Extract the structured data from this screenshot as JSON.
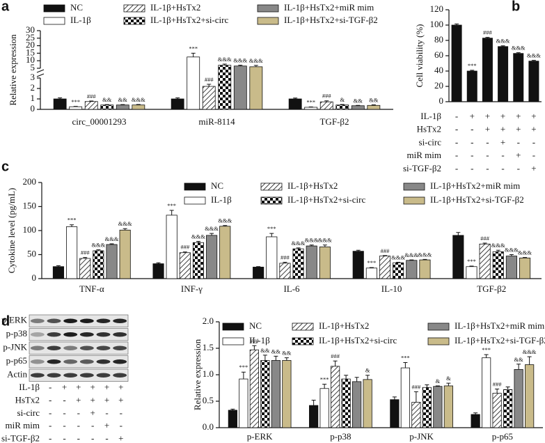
{
  "chart_data": [
    {
      "type": "bar",
      "panel_label": "a",
      "y_label": "Relative expression",
      "broken_axis": true,
      "categories": [
        "circ_00001293",
        "miR-8114",
        "TGF-β2"
      ],
      "ylim": [
        0,
        30
      ],
      "yticks": [
        0,
        1,
        2,
        3,
        5,
        10,
        15,
        20,
        25,
        30
      ],
      "series": [
        {
          "name": "NC",
          "color": "#111111",
          "values": [
            1.0,
            1.0,
            1.0
          ],
          "errors": [
            0.1,
            0.1,
            0.08
          ],
          "annotations": [
            null,
            null,
            null
          ]
        },
        {
          "name": "IL-1β",
          "color": "#ffffff",
          "values": [
            0.25,
            12.5,
            0.2
          ],
          "errors": [
            0.03,
            2.5,
            0.03
          ],
          "annotations": [
            "***",
            "***",
            "***"
          ]
        },
        {
          "name": "IL-1β+HsTx2",
          "color": "#ffffff",
          "pattern": "hatch",
          "values": [
            0.75,
            2.2,
            0.72
          ],
          "errors": [
            0.05,
            0.2,
            0.1
          ],
          "annotations": [
            "###",
            "###",
            "###"
          ]
        },
        {
          "name": "IL-1β+HsTx2+si-circ",
          "color": "#ffffff",
          "pattern": "checker",
          "values": [
            0.42,
            7.0,
            0.42
          ],
          "errors": [
            0.04,
            0.8,
            0.05
          ],
          "annotations": [
            "&&",
            "&&&",
            "&"
          ]
        },
        {
          "name": "IL-1β+HsTx2+miR mim",
          "color": "#888888",
          "values": [
            0.42,
            6.5,
            0.35
          ],
          "errors": [
            0.04,
            0.5,
            0.03
          ],
          "annotations": [
            "&&",
            "&&&",
            "&&"
          ]
        },
        {
          "name": "IL-1β+HsTx2+si-TGF-β2",
          "color": "#c9bb8a",
          "values": [
            0.42,
            6.0,
            0.38
          ],
          "errors": [
            0.05,
            0.9,
            0.05
          ],
          "annotations": [
            "&&&",
            "&&&",
            "&&"
          ]
        }
      ]
    },
    {
      "type": "bar",
      "panel_label": "b",
      "y_label": "Cell viability (%)",
      "color": "#111111",
      "values": [
        100,
        40,
        83,
        72,
        63,
        53
      ],
      "errors": [
        1.5,
        1,
        1,
        1,
        1,
        1
      ],
      "annotations": [
        null,
        "***",
        "###",
        "&&&",
        "&&&",
        "&&&"
      ],
      "ylim": [
        0,
        120
      ],
      "yticks": [
        0,
        20,
        40,
        60,
        80,
        100,
        120
      ],
      "treatments": {
        "rows": [
          {
            "label": "IL-1β",
            "signs": [
              "-",
              "+",
              "+",
              "+",
              "+",
              "+"
            ]
          },
          {
            "label": "HsTx2",
            "signs": [
              "-",
              "-",
              "+",
              "+",
              "+",
              "+"
            ]
          },
          {
            "label": "si-circ",
            "signs": [
              "-",
              "-",
              "-",
              "+",
              "-",
              "-"
            ]
          },
          {
            "label": "miR mim",
            "signs": [
              "-",
              "-",
              "-",
              "-",
              "+",
              "-"
            ]
          },
          {
            "label": "si-TGF-β2",
            "signs": [
              "-",
              "-",
              "-",
              "-",
              "-",
              "+"
            ]
          }
        ]
      }
    },
    {
      "type": "bar",
      "panel_label": "c",
      "y_label": "Cytokine level (pg/mL)",
      "categories": [
        "TNF-α",
        "INF-γ",
        "IL-6",
        "IL-10",
        "TGF-β2"
      ],
      "ylim": [
        0,
        200
      ],
      "yticks": [
        0,
        50,
        100,
        150,
        200
      ],
      "series": [
        {
          "name": "NC",
          "color": "#111111",
          "values": [
            25,
            31,
            24,
            57,
            90
          ],
          "errors": [
            2,
            2,
            1,
            2,
            6
          ],
          "annotations": [
            null,
            null,
            null,
            null,
            null
          ]
        },
        {
          "name": "IL-1β",
          "color": "#ffffff",
          "values": [
            108,
            132,
            87,
            22,
            25
          ],
          "errors": [
            4,
            10,
            7,
            1,
            1
          ],
          "annotations": [
            "***",
            "***",
            "***",
            "***",
            "***"
          ]
        },
        {
          "name": "IL-1β+HsTx2",
          "color": "#ffffff",
          "pattern": "hatch",
          "values": [
            42,
            54,
            32,
            47,
            72
          ],
          "errors": [
            2,
            1.5,
            2,
            1,
            2
          ],
          "annotations": [
            "###",
            "###",
            "###",
            "###",
            "###"
          ]
        },
        {
          "name": "IL-1β+HsTx2+si-circ",
          "color": "#ffffff",
          "pattern": "checker",
          "values": [
            58,
            75,
            62,
            33,
            56
          ],
          "errors": [
            2,
            2.5,
            2,
            1,
            3
          ],
          "annotations": [
            "&&&",
            "&&&",
            "&&&",
            "&&&",
            "&&&"
          ]
        },
        {
          "name": "IL-1β+HsTx2+miR mim",
          "color": "#888888",
          "values": [
            71,
            90,
            68,
            38,
            47
          ],
          "errors": [
            1.5,
            4,
            2,
            1,
            3
          ],
          "annotations": [
            "&&&",
            "&&&",
            "&&&",
            "&&&",
            "&&&"
          ]
        },
        {
          "name": "IL-1β+HsTx2+si-TGF-β2",
          "color": "#c9bb8a",
          "values": [
            101,
            109,
            66,
            39,
            43
          ],
          "errors": [
            3,
            1.5,
            4,
            1,
            1
          ],
          "annotations": [
            "&&&",
            "&&&",
            "&&&",
            "&&&",
            "&&&"
          ]
        }
      ]
    },
    {
      "type": "bar",
      "panel_label": "d",
      "y_label": "Relative expression",
      "categories": [
        "p-ERK",
        "p-p38",
        "p-JNK",
        "p-p65"
      ],
      "ylim": [
        0,
        2
      ],
      "yticks": [
        {
          "value": 0,
          "label": "0.0"
        },
        0.5,
        {
          "value": 1,
          "label": "1.0"
        },
        1.5,
        {
          "value": 2,
          "label": "2.0"
        }
      ],
      "series": [
        {
          "name": "NC",
          "color": "#111111",
          "values": [
            0.33,
            0.42,
            0.53,
            0.25
          ],
          "errors": [
            0.02,
            0.1,
            0.05,
            0.03
          ],
          "annotations": [
            null,
            null,
            null,
            null
          ]
        },
        {
          "name": "IL-1β",
          "color": "#ffffff",
          "values": [
            0.92,
            0.74,
            1.13,
            1.32
          ],
          "errors": [
            0.13,
            0.08,
            0.1,
            0.06
          ],
          "annotations": [
            "***",
            "***",
            "***",
            "***"
          ]
        },
        {
          "name": "IL-1β+HsTx2",
          "color": "#ffffff",
          "pattern": "hatch",
          "values": [
            1.47,
            1.16,
            0.48,
            0.65
          ],
          "errors": [
            0.08,
            0.1,
            0.2,
            0.08
          ],
          "annotations": [
            "###",
            "###",
            "###",
            "###"
          ]
        },
        {
          "name": "IL-1β+HsTx2+si-circ",
          "color": "#ffffff",
          "pattern": "checker",
          "values": [
            1.27,
            0.92,
            0.76,
            0.72
          ],
          "errors": [
            0.1,
            0.07,
            0.05,
            0.05
          ],
          "annotations": [
            "&&",
            null,
            null,
            null
          ]
        },
        {
          "name": "IL-1β+HsTx2+miR mim",
          "color": "#888888",
          "values": [
            1.27,
            0.87,
            0.78,
            1.1
          ],
          "errors": [
            0.08,
            0.08,
            0.01,
            0.1
          ],
          "annotations": [
            "&&",
            null,
            "&",
            "&&"
          ]
        },
        {
          "name": "IL-1β+HsTx2+si-TGF-β2",
          "color": "#c9bb8a",
          "values": [
            1.27,
            0.91,
            0.79,
            1.19
          ],
          "errors": [
            0.05,
            0.08,
            0.05,
            0.15
          ],
          "annotations": [
            "&&",
            "&",
            "&",
            "&&&"
          ]
        }
      ]
    }
  ],
  "blot": {
    "rows": [
      "p-ERK",
      "p-p38",
      "p-JNK",
      "p-p65",
      "Actin"
    ],
    "treatments": {
      "rows": [
        {
          "label": "IL-1β",
          "signs": [
            "-",
            "+",
            "+",
            "+",
            "+",
            "+"
          ]
        },
        {
          "label": "HsTx2",
          "signs": [
            "-",
            "-",
            "+",
            "+",
            "+",
            "+"
          ]
        },
        {
          "label": "si-circ",
          "signs": [
            "-",
            "-",
            "-",
            "+",
            "-",
            "-"
          ]
        },
        {
          "label": "miR mim",
          "signs": [
            "-",
            "-",
            "-",
            "-",
            "+",
            "-"
          ]
        },
        {
          "label": "si-TGF-β2",
          "signs": [
            "-",
            "-",
            "-",
            "-",
            "-",
            "+"
          ]
        }
      ]
    }
  }
}
